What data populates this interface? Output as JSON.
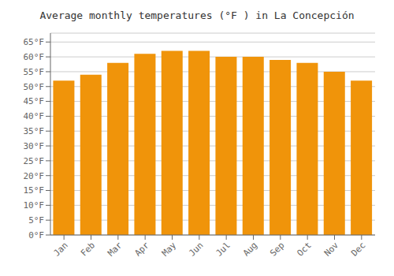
{
  "chart_data": {
    "type": "bar",
    "title": "Average monthly temperatures (°F ) in La Concepción",
    "categories": [
      "Jan",
      "Feb",
      "Mar",
      "Apr",
      "May",
      "Jun",
      "Jul",
      "Aug",
      "Sep",
      "Oct",
      "Nov",
      "Dec"
    ],
    "values": [
      52,
      54,
      58,
      61,
      62,
      62,
      60,
      60,
      59,
      58,
      55,
      52
    ],
    "color": "#F0940A",
    "ylim": [
      0,
      68
    ],
    "yticks": [
      {
        "value": 0,
        "label": "0°F"
      },
      {
        "value": 5,
        "label": "5°F"
      },
      {
        "value": 10,
        "label": "10°F"
      },
      {
        "value": 15,
        "label": "15°F"
      },
      {
        "value": 20,
        "label": "20°F"
      },
      {
        "value": 25,
        "label": "25°F"
      },
      {
        "value": 30,
        "label": "30°F"
      },
      {
        "value": 35,
        "label": "35°F"
      },
      {
        "value": 40,
        "label": "40°F"
      },
      {
        "value": 45,
        "label": "45°F"
      },
      {
        "value": 50,
        "label": "50°F"
      },
      {
        "value": 55,
        "label": "55°F"
      },
      {
        "value": 60,
        "label": "60°F"
      },
      {
        "value": 65,
        "label": "65°F"
      }
    ],
    "grid": true
  }
}
